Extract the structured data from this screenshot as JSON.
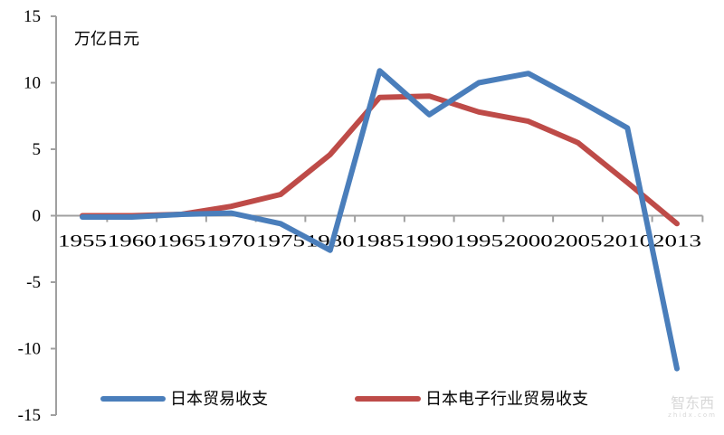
{
  "chart_data": {
    "type": "line",
    "title": "",
    "unit_label": "万亿日元",
    "xlabel": "",
    "ylabel": "万亿日元",
    "ylim": [
      -15,
      15
    ],
    "yticks": [
      15,
      10,
      5,
      0,
      -5,
      -10,
      -15
    ],
    "grid": false,
    "legend_position": "bottom",
    "categories": [
      "1955",
      "1960",
      "1965",
      "1970",
      "1975",
      "1980",
      "1985",
      "1990",
      "1995",
      "2000",
      "2005",
      "2010",
      "2013"
    ],
    "series": [
      {
        "name": "日本贸易收支",
        "color": "#4a7ebb",
        "values": [
          -0.1,
          -0.1,
          0.1,
          0.2,
          -0.6,
          -2.6,
          10.9,
          7.6,
          10.0,
          10.7,
          8.7,
          6.6,
          -11.5
        ]
      },
      {
        "name": "日本电子行业贸易收支",
        "color": "#be4b48",
        "values": [
          0.0,
          0.0,
          0.1,
          0.7,
          1.6,
          4.6,
          8.9,
          9.0,
          7.8,
          7.1,
          5.5,
          2.5,
          -0.6
        ]
      }
    ]
  },
  "watermark": {
    "text": "智东西",
    "sub": "zhidx.com"
  }
}
